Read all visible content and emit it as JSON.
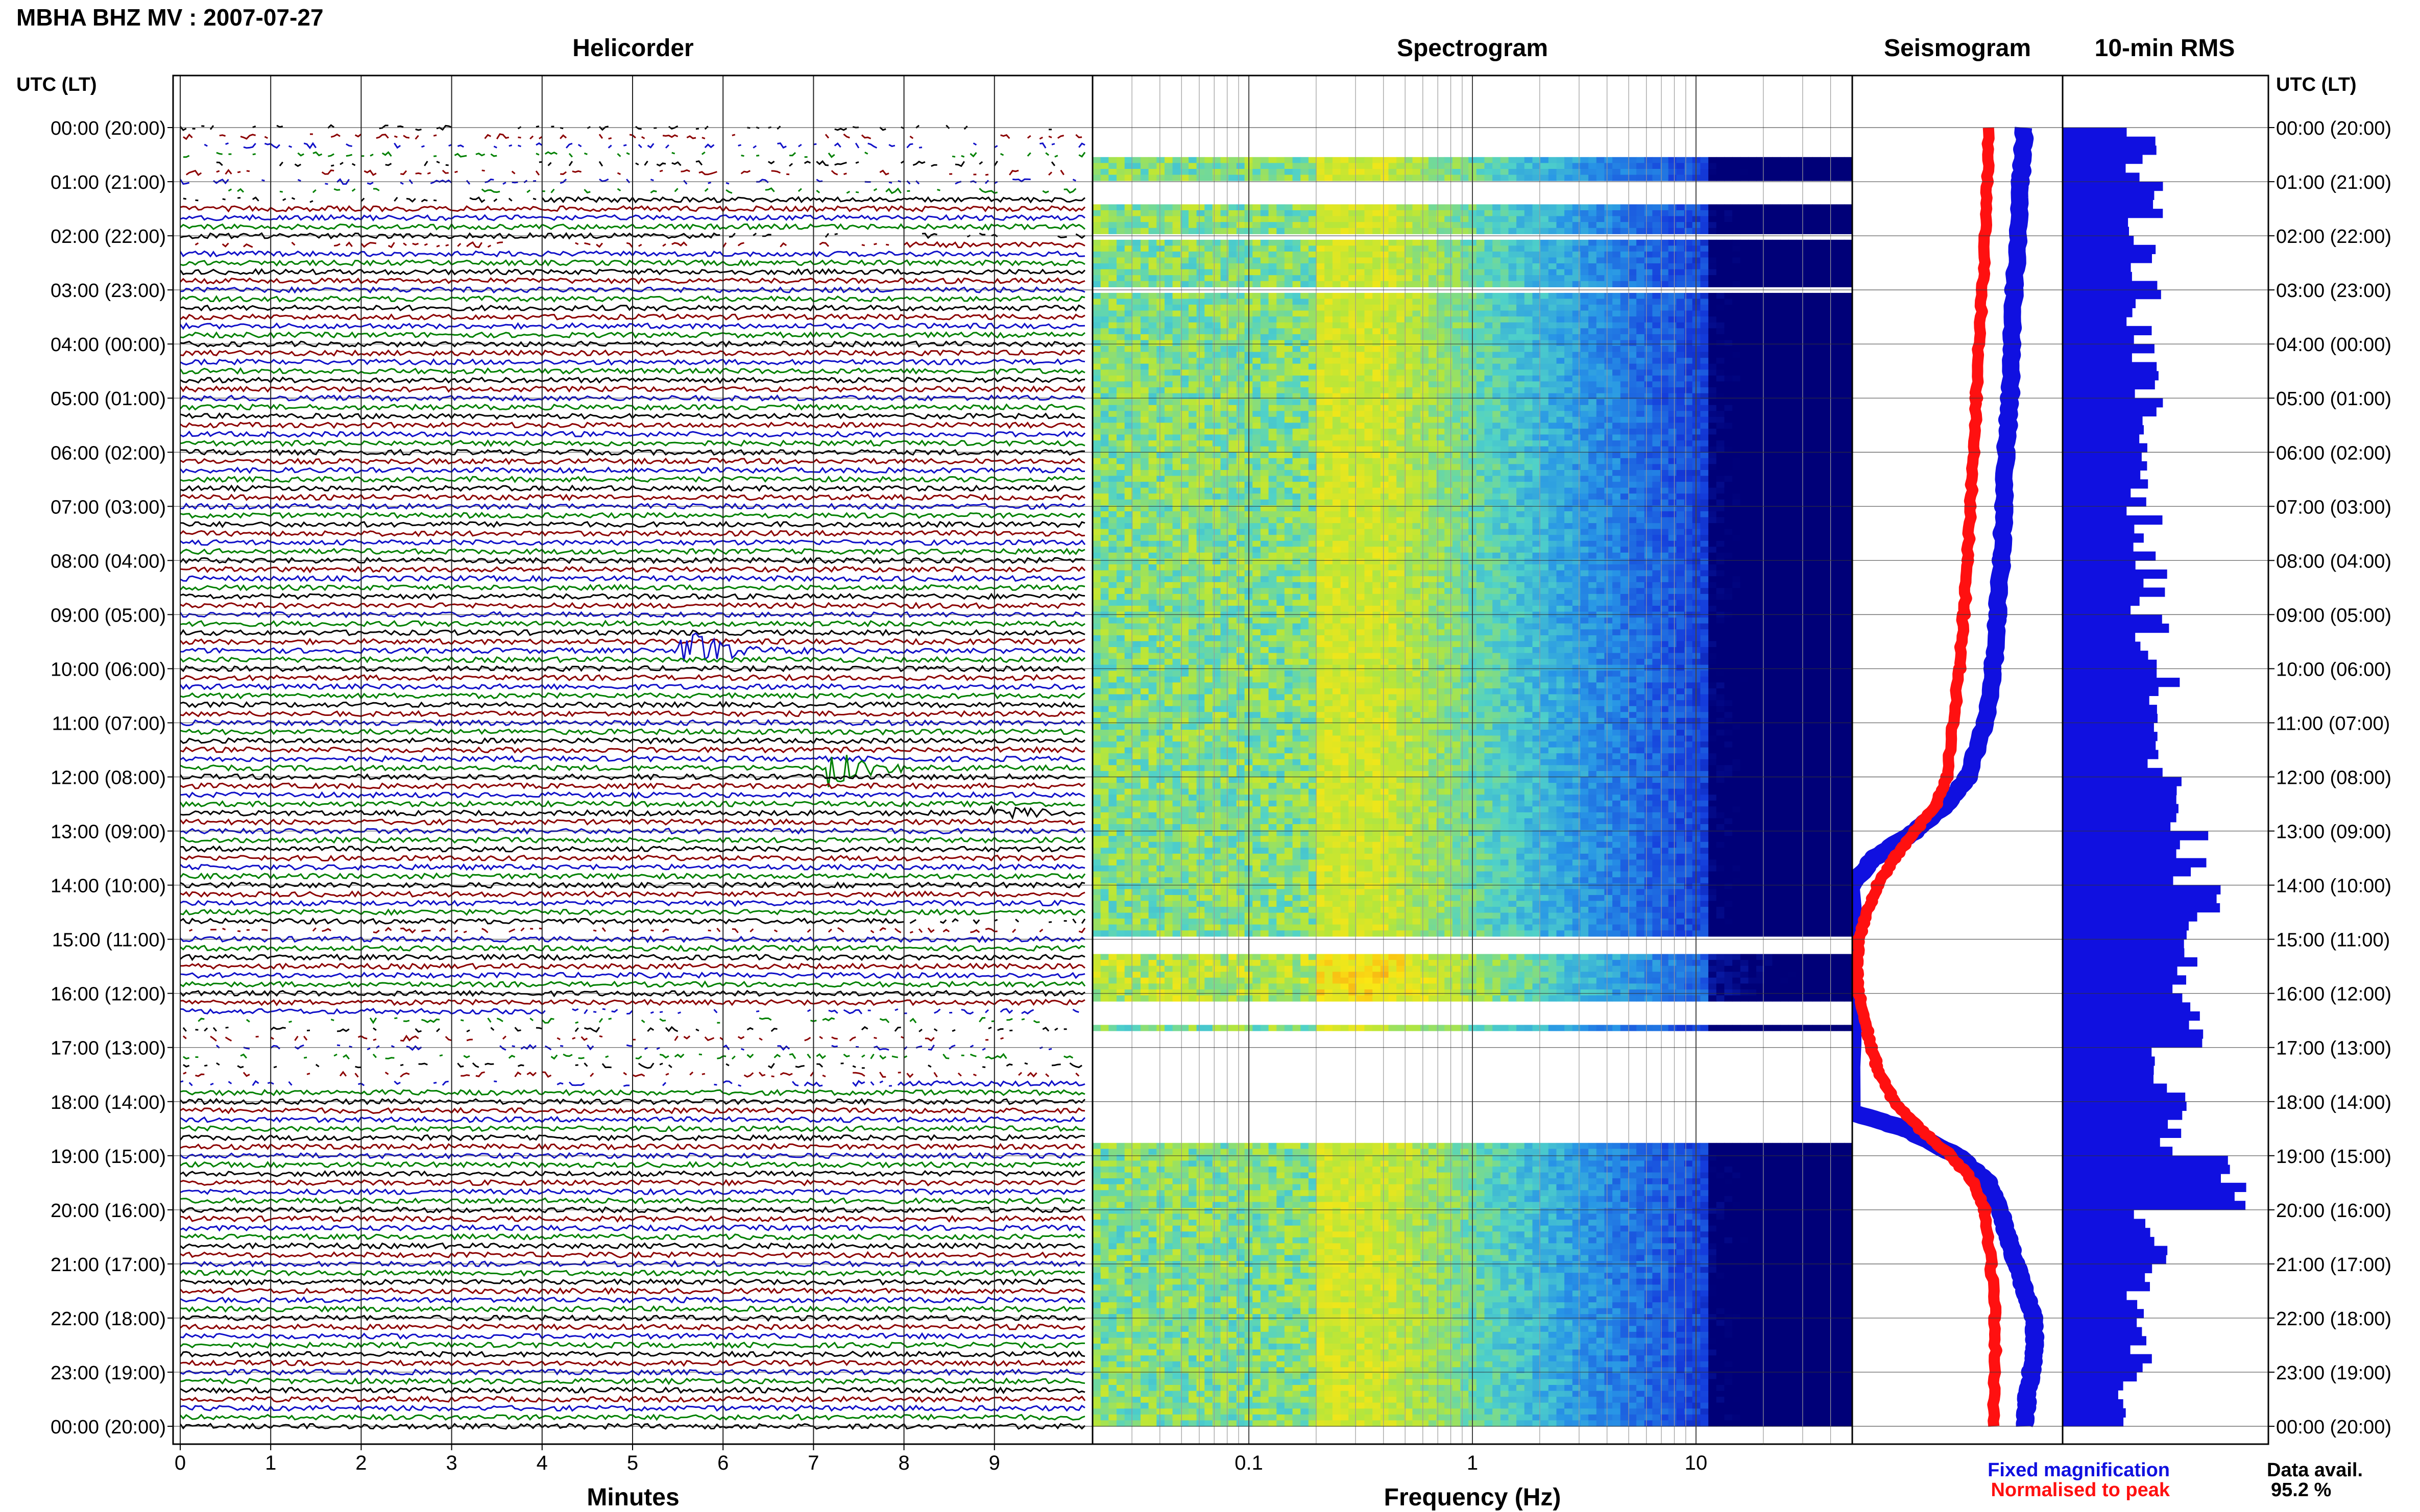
{
  "header": {
    "title": "MBHA BHZ MV : 2007-07-27"
  },
  "panels": {
    "helicorder": "Helicorder",
    "spectrogram": "Spectrogram",
    "seismogram": "Seismogram",
    "rms": "10-min RMS"
  },
  "axis_labels": {
    "utc_left": "UTC (LT)",
    "utc_right": "UTC (LT)",
    "minutes": "Minutes",
    "frequency": "Frequency (Hz)"
  },
  "legend": {
    "fixed": "Fixed magnification",
    "normalised": "Normalised to peak",
    "fixed_color": "#1010e0",
    "normalised_color": "#ff1010"
  },
  "availability": {
    "label": "Data avail.",
    "value": "95.2 %"
  },
  "chart_data": [
    {
      "type": "line",
      "panel": "Helicorder",
      "xlabel": "Minutes",
      "x_ticks": [
        "0",
        "1",
        "2",
        "3",
        "4",
        "5",
        "6",
        "7",
        "8",
        "9"
      ],
      "xlim": [
        0,
        10
      ],
      "time_labels": [
        "00:00 (20:00)",
        "01:00 (21:00)",
        "02:00 (22:00)",
        "03:00 (23:00)",
        "04:00 (00:00)",
        "05:00 (01:00)",
        "06:00 (02:00)",
        "07:00 (03:00)",
        "08:00 (04:00)",
        "09:00 (05:00)",
        "10:00 (06:00)",
        "11:00 (07:00)",
        "12:00 (08:00)",
        "13:00 (09:00)",
        "14:00 (10:00)",
        "15:00 (11:00)",
        "16:00 (12:00)",
        "17:00 (13:00)",
        "18:00 (14:00)",
        "19:00 (15:00)",
        "20:00 (16:00)",
        "21:00 (17:00)",
        "22:00 (18:00)",
        "23:00 (19:00)",
        "00:00 (20:00)"
      ],
      "trace_colors": [
        "#000000",
        "#8b0000",
        "#1010c8",
        "#008000"
      ],
      "lines_per_hour": 6,
      "gaps_utc_hours": [
        [
          0.0,
          1.4
        ],
        [
          2.1,
          2.3
        ],
        [
          16.4,
          17.8
        ],
        [
          14.8,
          15.0
        ]
      ],
      "events": [
        {
          "time_utc": 9.6,
          "minute": 5.55,
          "amplitude": 1.8,
          "color": "#1010c8"
        },
        {
          "time_utc": 11.85,
          "minute": 7.2,
          "amplitude": 1.3,
          "color": "#008000"
        },
        {
          "time_utc": 12.6,
          "minute": 9.0,
          "amplitude": 0.5,
          "color": "#000000"
        }
      ]
    },
    {
      "type": "heatmap",
      "panel": "Spectrogram",
      "xlabel": "Frequency (Hz)",
      "x_scale": "log",
      "xlim": [
        0.02,
        50
      ],
      "x_ticks": [
        "0.1",
        "1",
        "10"
      ],
      "ylim_utc_hours": [
        0,
        24
      ],
      "missing_utc_hours": [
        [
          0,
          0.55
        ],
        [
          0.95,
          1.4
        ],
        [
          1.95,
          2.05
        ],
        [
          2.95,
          3.05
        ],
        [
          15.0,
          15.3
        ],
        [
          16.15,
          16.55
        ],
        [
          16.65,
          18.8
        ]
      ],
      "peak_band_hz": [
        0.2,
        0.4
      ]
    },
    {
      "type": "line",
      "panel": "Seismogram",
      "ylim_utc_hours": [
        0,
        24
      ],
      "series": [
        {
          "name": "Fixed magnification",
          "color": "#1010e0",
          "points_utc_hour_position": [
            [
              0,
              0.82
            ],
            [
              1,
              0.8
            ],
            [
              2,
              0.79
            ],
            [
              3,
              0.77
            ],
            [
              4,
              0.76
            ],
            [
              5,
              0.75
            ],
            [
              6,
              0.73
            ],
            [
              7,
              0.72
            ],
            [
              8,
              0.71
            ],
            [
              9,
              0.69
            ],
            [
              10,
              0.67
            ],
            [
              11,
              0.63
            ],
            [
              12,
              0.55
            ],
            [
              12.5,
              0.45
            ],
            [
              13,
              0.3
            ],
            [
              13.5,
              0.1
            ],
            [
              14,
              0.0
            ],
            [
              18.2,
              0.0
            ],
            [
              18.5,
              0.25
            ],
            [
              19,
              0.5
            ],
            [
              19.5,
              0.65
            ],
            [
              20,
              0.7
            ],
            [
              20.5,
              0.74
            ],
            [
              21,
              0.78
            ],
            [
              21.5,
              0.82
            ],
            [
              22,
              0.86
            ],
            [
              22.5,
              0.87
            ],
            [
              23,
              0.85
            ],
            [
              23.5,
              0.83
            ],
            [
              24,
              0.82
            ]
          ]
        },
        {
          "name": "Normalised to peak",
          "color": "#ff1010",
          "points_utc_hour_position": [
            [
              0,
              0.65
            ],
            [
              1,
              0.64
            ],
            [
              2,
              0.63
            ],
            [
              3,
              0.62
            ],
            [
              4,
              0.6
            ],
            [
              5,
              0.59
            ],
            [
              6,
              0.58
            ],
            [
              7,
              0.56
            ],
            [
              8,
              0.55
            ],
            [
              9,
              0.53
            ],
            [
              10,
              0.51
            ],
            [
              11,
              0.48
            ],
            [
              12,
              0.45
            ],
            [
              12.5,
              0.4
            ],
            [
              13,
              0.3
            ],
            [
              13.5,
              0.2
            ],
            [
              14,
              0.12
            ],
            [
              14.5,
              0.07
            ],
            [
              15,
              0.03
            ],
            [
              15.5,
              0.02
            ],
            [
              16,
              0.03
            ],
            [
              16.5,
              0.06
            ],
            [
              17,
              0.09
            ],
            [
              17.5,
              0.13
            ],
            [
              18,
              0.2
            ],
            [
              18.5,
              0.32
            ],
            [
              19,
              0.47
            ],
            [
              19.5,
              0.58
            ],
            [
              20,
              0.63
            ],
            [
              21,
              0.66
            ],
            [
              22,
              0.68
            ],
            [
              23,
              0.68
            ],
            [
              24,
              0.67
            ]
          ]
        }
      ]
    },
    {
      "type": "bar",
      "panel": "10-min RMS",
      "orientation": "horizontal",
      "bin_minutes": 10,
      "hourly_mean_relative": [
        0.38,
        0.4,
        0.42,
        0.4,
        0.39,
        0.4,
        0.41,
        0.4,
        0.42,
        0.44,
        0.48,
        0.45,
        0.5,
        0.62,
        0.68,
        0.58,
        0.6,
        0.52,
        0.55,
        0.85,
        0.42,
        0.4,
        0.37,
        0.36
      ]
    }
  ]
}
